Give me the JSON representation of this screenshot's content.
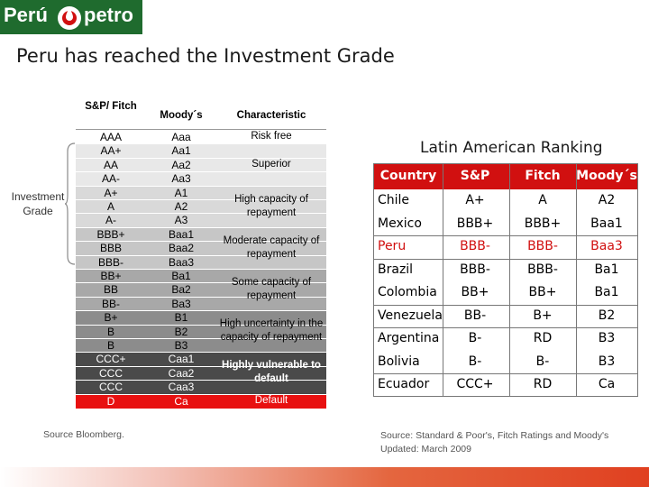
{
  "logo": {
    "left": "Perú",
    "right": "petro"
  },
  "title": "Peru has reached the Investment Grade",
  "ratings": {
    "headers": {
      "sp": "S&P/ Fitch",
      "moodys": "Moody´s",
      "characteristic": "Characteristic"
    },
    "rows": [
      {
        "sp": "AAA",
        "moodys": "Aaa",
        "bg": "#ffffff"
      },
      {
        "sp": "AA+",
        "moodys": "Aa1",
        "bg": "#e8e8e8"
      },
      {
        "sp": "AA",
        "moodys": "Aa2",
        "bg": "#e8e8e8"
      },
      {
        "sp": "AA-",
        "moodys": "Aa3",
        "bg": "#e8e8e8"
      },
      {
        "sp": "A+",
        "moodys": "A1",
        "bg": "#d9d9d9"
      },
      {
        "sp": "A",
        "moodys": "A2",
        "bg": "#d9d9d9"
      },
      {
        "sp": "A-",
        "moodys": "A3",
        "bg": "#d9d9d9"
      },
      {
        "sp": "BBB+",
        "moodys": "Baa1",
        "bg": "#c6c6c6"
      },
      {
        "sp": "BBB",
        "moodys": "Baa2",
        "bg": "#c6c6c6"
      },
      {
        "sp": "BBB-",
        "moodys": "Baa3",
        "bg": "#c6c6c6"
      },
      {
        "sp": "BB+",
        "moodys": "Ba1",
        "bg": "#a8a8a8"
      },
      {
        "sp": "BB",
        "moodys": "Ba2",
        "bg": "#a8a8a8"
      },
      {
        "sp": "BB-",
        "moodys": "Ba3",
        "bg": "#a8a8a8"
      },
      {
        "sp": "B+",
        "moodys": "B1",
        "bg": "#8c8c8c"
      },
      {
        "sp": "B",
        "moodys": "B2",
        "bg": "#8c8c8c"
      },
      {
        "sp": "B",
        "moodys": "B3",
        "bg": "#8c8c8c"
      },
      {
        "sp": "CCC+",
        "moodys": "Caa1",
        "bg": "#4a4a4a",
        "fg": "#ffffff"
      },
      {
        "sp": "CCC",
        "moodys": "Caa2",
        "bg": "#4a4a4a",
        "fg": "#ffffff"
      },
      {
        "sp": "CCC",
        "moodys": "Caa3",
        "bg": "#4a4a4a",
        "fg": "#ffffff"
      },
      {
        "sp": "D",
        "moodys": "Ca",
        "bg": "#e81010",
        "fg": "#ffffff"
      }
    ],
    "groups": [
      {
        "label": "Risk free",
        "start": 0,
        "span": 1,
        "fg": "#000000",
        "bold": false
      },
      {
        "label": "Superior",
        "start": 1,
        "span": 3,
        "fg": "#000000",
        "bold": false
      },
      {
        "label": "High capacity of repayment",
        "start": 4,
        "span": 3,
        "fg": "#000000",
        "bold": false
      },
      {
        "label": "Moderate capacity of repayment",
        "start": 7,
        "span": 3,
        "fg": "#000000",
        "bold": false
      },
      {
        "label": "Some capacity of repayment",
        "start": 10,
        "span": 3,
        "fg": "#000000",
        "bold": false
      },
      {
        "label": "High uncertainty in the capacity of repayment",
        "start": 13,
        "span": 3,
        "fg": "#000000",
        "bold": false
      },
      {
        "label": "Highly vulnerable to default",
        "start": 16,
        "span": 3,
        "fg": "#ffffff",
        "bold": true
      },
      {
        "label": "Default",
        "start": 19,
        "span": 1,
        "fg": "#ffffff",
        "bold": false
      }
    ],
    "bracket_label": "Investment Grade",
    "source": "Source Bloomberg."
  },
  "latam": {
    "title": "Latin American Ranking",
    "headers": [
      "Country",
      "S&P",
      "Fitch",
      "Moody´s"
    ],
    "rows": [
      {
        "country": "Chile",
        "sp": "A+",
        "fitch": "A",
        "moodys": "A2",
        "group": 0,
        "highlight": false
      },
      {
        "country": "Mexico",
        "sp": "BBB+",
        "fitch": "BBB+",
        "moodys": "Baa1",
        "group": 0,
        "highlight": false
      },
      {
        "country": "Peru",
        "sp": "BBB-",
        "fitch": "BBB-",
        "moodys": "Baa3",
        "group": 1,
        "highlight": true
      },
      {
        "country": "Brazil",
        "sp": "BBB-",
        "fitch": "BBB-",
        "moodys": "Ba1",
        "group": 2,
        "highlight": false
      },
      {
        "country": "Colombia",
        "sp": "BB+",
        "fitch": "BB+",
        "moodys": "Ba1",
        "group": 2,
        "highlight": false
      },
      {
        "country": "Venezuela",
        "sp": "BB-",
        "fitch": "B+",
        "moodys": "B2",
        "group": 3,
        "highlight": false
      },
      {
        "country": "Argentina",
        "sp": "B-",
        "fitch": "RD",
        "moodys": "B3",
        "group": 4,
        "highlight": false
      },
      {
        "country": "Bolivia",
        "sp": "B-",
        "fitch": "B-",
        "moodys": "B3",
        "group": 4,
        "highlight": false
      },
      {
        "country": "Ecuador",
        "sp": "CCC+",
        "fitch": "RD",
        "moodys": "Ca",
        "group": 5,
        "highlight": false
      }
    ],
    "highlight_color": "#d11010",
    "source_line1": "Source: Standard & Poor's, Fitch Ratings and Moody's",
    "source_line2": "Updated: March 2009"
  }
}
